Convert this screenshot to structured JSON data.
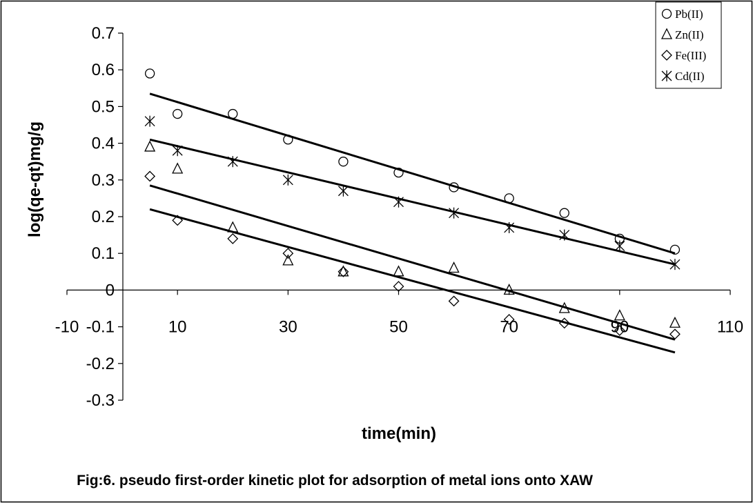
{
  "caption": "Fig:6.  pseudo first-order kinetic plot for adsorption of metal ions onto XAW",
  "chart_data": {
    "type": "scatter",
    "title": "",
    "xlabel": "time(min)",
    "ylabel": "log(qe-qt)mg/g",
    "xlim": [
      -10,
      110
    ],
    "ylim": [
      -0.3,
      0.7
    ],
    "x_ticks": [
      "-10",
      "10",
      "30",
      "50",
      "70",
      "90",
      "110"
    ],
    "y_ticks": [
      "0.7",
      "0.6",
      "0.5",
      "0.4",
      "0.3",
      "0.2",
      "0.1",
      "0",
      "-0.1",
      "-0.2",
      "-0.3"
    ],
    "legend_position": "top-right",
    "grid": false,
    "series": [
      {
        "name": "Pb(II)",
        "marker": "circle",
        "x": [
          5,
          10,
          20,
          30,
          40,
          50,
          60,
          70,
          80,
          90,
          100
        ],
        "y": [
          0.59,
          0.48,
          0.48,
          0.41,
          0.35,
          0.32,
          0.28,
          0.25,
          0.21,
          0.14,
          0.11
        ],
        "trendline": {
          "x": [
            5,
            100
          ],
          "y": [
            0.535,
            0.1
          ]
        }
      },
      {
        "name": "Zn(II)",
        "marker": "triangle",
        "x": [
          5,
          10,
          20,
          30,
          40,
          50,
          60,
          70,
          80,
          90,
          100
        ],
        "y": [
          0.39,
          0.33,
          0.17,
          0.08,
          0.05,
          0.05,
          0.06,
          0.0,
          -0.05,
          -0.07,
          -0.09
        ],
        "trendline": {
          "x": [
            5,
            100
          ],
          "y": [
            0.285,
            -0.135
          ]
        }
      },
      {
        "name": "Fe(III)",
        "marker": "diamond",
        "x": [
          5,
          10,
          20,
          30,
          40,
          50,
          60,
          70,
          80,
          90,
          100
        ],
        "y": [
          0.31,
          0.19,
          0.14,
          0.1,
          0.05,
          0.01,
          -0.03,
          -0.08,
          -0.09,
          -0.11,
          -0.12
        ],
        "trendline": {
          "x": [
            5,
            100
          ],
          "y": [
            0.22,
            -0.17
          ]
        }
      },
      {
        "name": "Cd(II)",
        "marker": "asterisk",
        "x": [
          5,
          10,
          20,
          30,
          40,
          50,
          60,
          70,
          80,
          90,
          100
        ],
        "y": [
          0.46,
          0.38,
          0.35,
          0.3,
          0.27,
          0.24,
          0.21,
          0.17,
          0.15,
          0.12,
          0.07
        ],
        "trendline": {
          "x": [
            5,
            100
          ],
          "y": [
            0.41,
            0.07
          ]
        }
      }
    ]
  }
}
